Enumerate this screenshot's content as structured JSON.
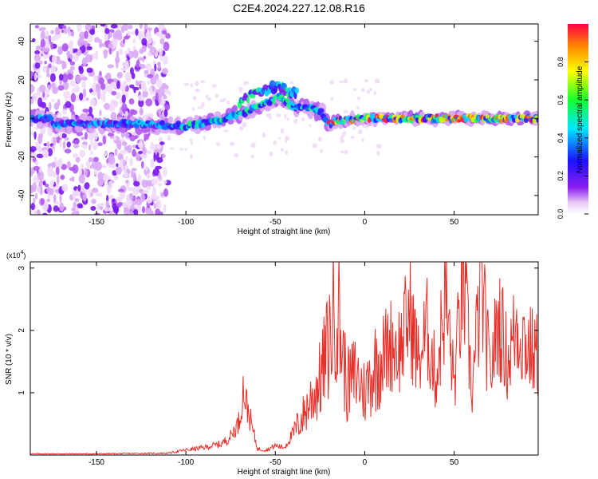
{
  "title": "C2E4.2024.227.12.08.R16",
  "colorbar": {
    "label": "Normalized spectral amplitude",
    "ticks": [
      "0.0",
      "0.2",
      "0.4",
      "0.6",
      "0.8"
    ]
  },
  "chart_data": [
    {
      "type": "heatmap",
      "xlabel": "Height of straight line (km)",
      "ylabel": "Frequency (Hz)",
      "xlim": [
        -187,
        97
      ],
      "ylim": [
        -50,
        49
      ],
      "xticks": [
        -150,
        -100,
        -50,
        0,
        50
      ],
      "yticks": [
        -40,
        -20,
        0,
        20,
        40
      ],
      "colorbar_range": [
        0,
        1
      ],
      "colormap": "rainbow (white/violet = 0, blue, cyan, green, yellow, red = 1)",
      "ridge": {
        "description": "high-amplitude ridge of the spectrum",
        "x": [
          -175,
          -160,
          -140,
          -120,
          -100,
          -80,
          -65,
          -55,
          -48,
          -40,
          -30,
          -24,
          -20,
          -15,
          0,
          25,
          50,
          75,
          95
        ],
        "y": [
          -3,
          -3,
          -3,
          -3,
          -4,
          -1,
          4,
          8,
          11,
          6,
          5,
          3,
          -3,
          -1,
          0,
          0,
          0,
          0,
          0
        ]
      },
      "regions": [
        {
          "x_range": [
            -187,
            -110
          ],
          "note": "broadband noise spread over full frequency range"
        },
        {
          "x_range": [
            -16,
            97
          ],
          "note": "narrow band near 0 Hz with peak amplitudes near 1.0"
        }
      ]
    },
    {
      "type": "line",
      "xlabel": "Height of straight line (km)",
      "ylabel": "SNR (10 * v/v)",
      "y_multiplier": "(x10^4)",
      "xlim": [
        -187,
        97
      ],
      "ylim": [
        0,
        3.1
      ],
      "xticks": [
        -150,
        -100,
        -50,
        0,
        50
      ],
      "yticks": [
        1,
        2,
        3
      ],
      "series": [
        {
          "color": "#e8302a",
          "x": [
            -187,
            -150,
            -110,
            -100,
            -90,
            -80,
            -75,
            -70,
            -68,
            -60,
            -55,
            -50,
            -45,
            -40,
            -35,
            -30,
            -25,
            -20,
            -16,
            -10,
            -5,
            0,
            5,
            10,
            15,
            20,
            25,
            30,
            35,
            40,
            45,
            50,
            55,
            60,
            65,
            70,
            75,
            80,
            85,
            90,
            95
          ],
          "y": [
            0.02,
            0.02,
            0.03,
            0.08,
            0.12,
            0.18,
            0.3,
            0.55,
            1.05,
            0.1,
            0.08,
            0.15,
            0.12,
            0.35,
            0.6,
            0.9,
            1.2,
            1.8,
            2.55,
            1.1,
            1.3,
            1.0,
            1.4,
            1.6,
            1.8,
            1.7,
            2.3,
            1.5,
            2.0,
            1.2,
            2.6,
            1.1,
            2.9,
            1.0,
            2.75,
            1.3,
            2.2,
            1.5,
            2.1,
            1.8,
            1.6
          ]
        }
      ]
    }
  ]
}
